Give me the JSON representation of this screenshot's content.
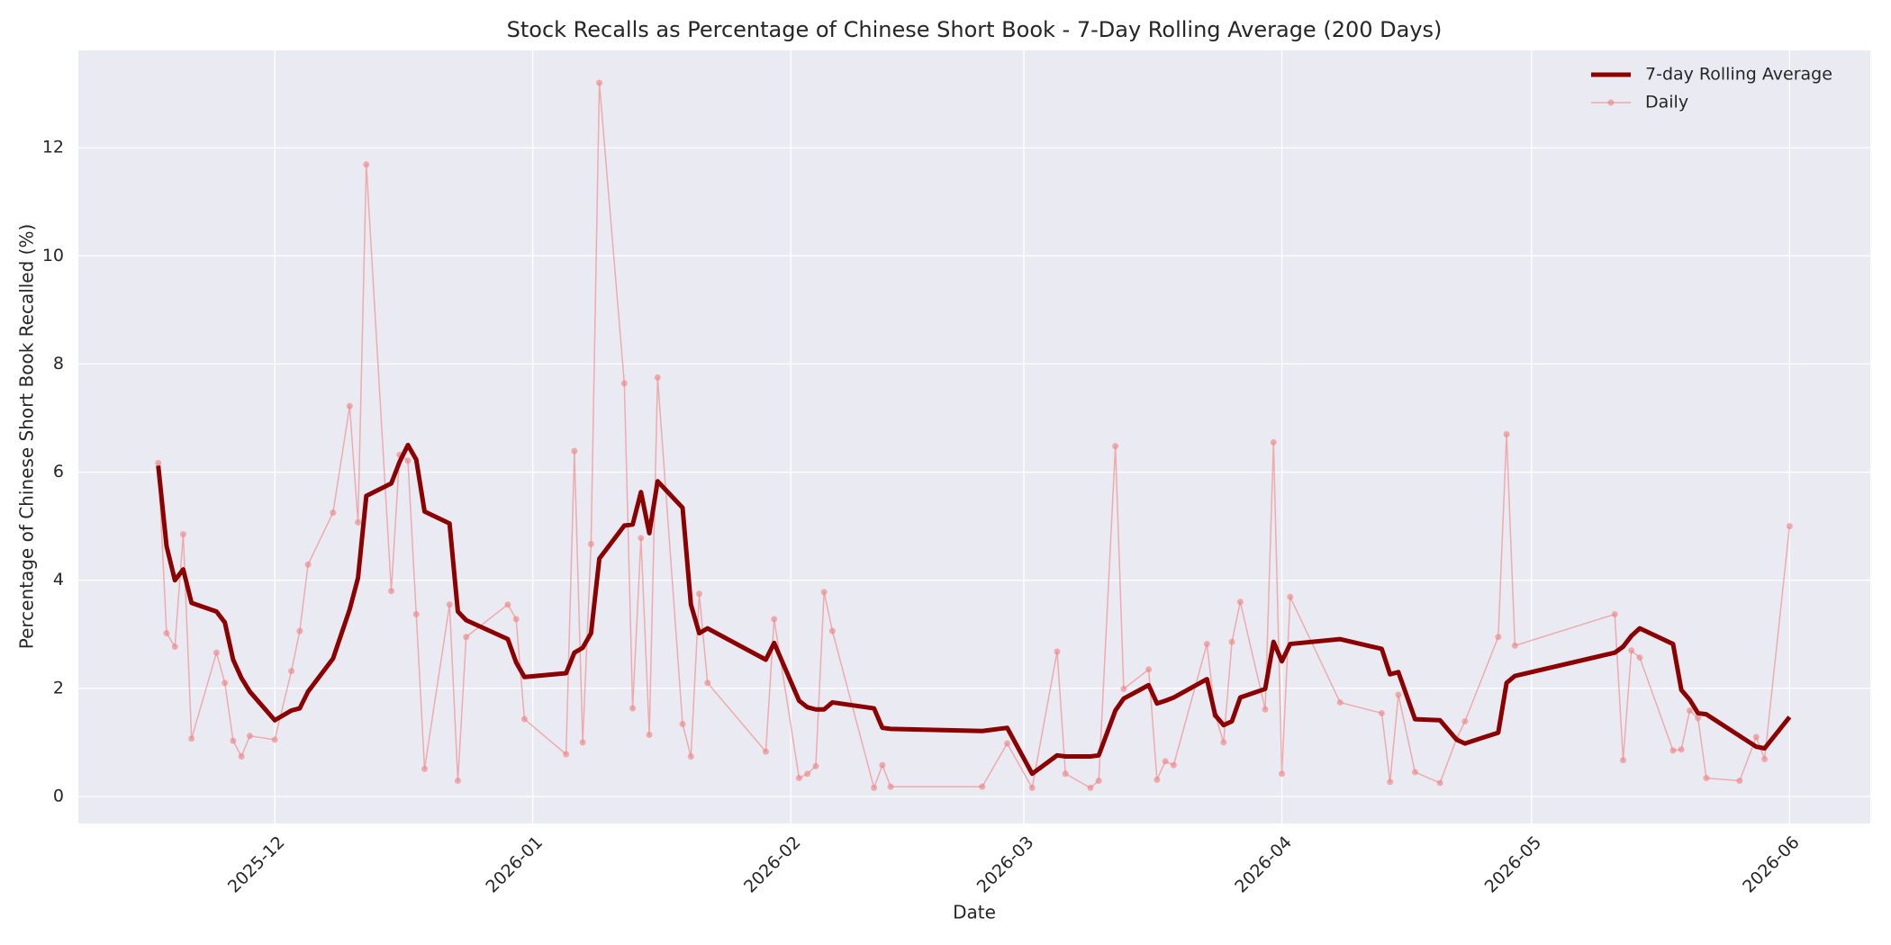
{
  "chart_data": {
    "type": "line",
    "title": "Stock Recalls as Percentage of Chinese Short Book - 7-Day Rolling Average (200 Days)",
    "x_label": "Date",
    "y_label": "Percentage of Chinese Short Book Recalled (%)",
    "x": [
      -14,
      -13,
      -12,
      -11,
      -10,
      -7,
      -6,
      -5,
      -4,
      -3,
      0,
      2,
      3,
      4,
      7,
      9,
      10,
      11,
      14,
      15,
      16,
      17,
      18,
      21,
      22,
      23,
      28,
      29,
      30,
      35,
      36,
      37,
      38,
      39,
      42,
      43,
      44,
      45,
      46,
      49,
      50,
      51,
      52,
      59,
      60,
      63,
      64,
      65,
      66,
      67,
      72,
      73,
      74,
      85,
      88,
      91,
      94,
      95,
      98,
      99,
      101,
      102,
      105,
      106,
      107,
      108,
      112,
      113,
      114,
      115,
      116,
      119,
      120,
      121,
      122,
      128,
      133,
      134,
      135,
      137,
      140,
      142,
      143,
      147,
      148,
      149,
      161,
      162,
      163,
      164,
      168,
      169,
      170,
      171,
      172,
      176,
      178,
      179,
      182
    ],
    "series": [
      {
        "name": "7-day Rolling Average",
        "color": "#8b0000",
        "line_width": 5,
        "marker": false,
        "values": [
          6.12,
          4.63,
          4.0,
          4.2,
          3.58,
          3.42,
          3.22,
          2.53,
          2.19,
          1.94,
          1.41,
          1.59,
          1.63,
          1.94,
          2.55,
          3.46,
          4.04,
          5.56,
          5.79,
          6.19,
          6.5,
          6.23,
          5.27,
          5.05,
          3.42,
          3.26,
          2.91,
          2.48,
          2.21,
          2.28,
          2.66,
          2.75,
          3.02,
          4.4,
          5.01,
          5.03,
          5.63,
          4.87,
          5.83,
          5.34,
          3.55,
          3.02,
          3.11,
          2.53,
          2.84,
          1.77,
          1.65,
          1.61,
          1.61,
          1.74,
          1.63,
          1.27,
          1.25,
          1.21,
          1.27,
          0.42,
          0.76,
          0.74,
          0.74,
          0.76,
          1.59,
          1.81,
          2.06,
          1.72,
          1.77,
          1.83,
          2.17,
          1.5,
          1.32,
          1.39,
          1.83,
          1.99,
          2.86,
          2.5,
          2.82,
          2.91,
          2.73,
          2.26,
          2.3,
          1.43,
          1.41,
          1.05,
          0.98,
          1.18,
          2.1,
          2.23,
          2.66,
          2.77,
          2.97,
          3.11,
          2.82,
          1.97,
          1.79,
          1.54,
          1.52,
          1.12,
          0.92,
          0.89,
          1.47
        ]
      },
      {
        "name": "Daily",
        "color": "#f08080",
        "line_width": 1.5,
        "marker": true,
        "values": [
          6.17,
          3.02,
          2.77,
          4.85,
          1.07,
          2.66,
          2.1,
          1.03,
          0.74,
          1.12,
          1.05,
          2.32,
          3.06,
          4.29,
          5.25,
          7.22,
          5.07,
          11.69,
          3.8,
          6.32,
          6.21,
          3.37,
          0.51,
          3.55,
          0.29,
          2.95,
          3.55,
          3.28,
          1.43,
          0.78,
          6.39,
          1.0,
          4.67,
          13.2,
          7.64,
          1.63,
          4.78,
          1.14,
          7.75,
          1.34,
          0.74,
          3.75,
          2.1,
          0.83,
          3.28,
          0.34,
          0.42,
          0.56,
          3.78,
          3.06,
          0.16,
          0.58,
          0.18,
          0.18,
          0.98,
          0.16,
          2.68,
          0.42,
          0.16,
          0.29,
          6.48,
          1.99,
          2.35,
          0.31,
          0.65,
          0.58,
          2.82,
          1.5,
          1.0,
          2.86,
          3.6,
          1.61,
          6.55,
          0.42,
          3.69,
          1.74,
          1.54,
          0.27,
          1.88,
          0.45,
          0.25,
          1.07,
          1.39,
          2.95,
          6.7,
          2.79,
          3.37,
          0.67,
          2.7,
          2.57,
          0.85,
          0.87,
          1.59,
          1.45,
          0.34,
          0.29,
          1.1,
          0.69,
          5.0
        ]
      }
    ],
    "xlim": [
      -23.6,
      191.7
    ],
    "xticks": [
      {
        "value": 0,
        "label": "2025-12"
      },
      {
        "value": 31,
        "label": "2026-01"
      },
      {
        "value": 62,
        "label": "2026-02"
      },
      {
        "value": 90,
        "label": "2026-03"
      },
      {
        "value": 121,
        "label": "2026-04"
      },
      {
        "value": 151,
        "label": "2026-05"
      },
      {
        "value": 182,
        "label": "2026-06"
      }
    ],
    "ylim": [
      -0.5,
      13.8
    ],
    "yticks": [
      0,
      2,
      4,
      6,
      8,
      10,
      12
    ],
    "grid": true,
    "legend_position": "upper-right"
  }
}
